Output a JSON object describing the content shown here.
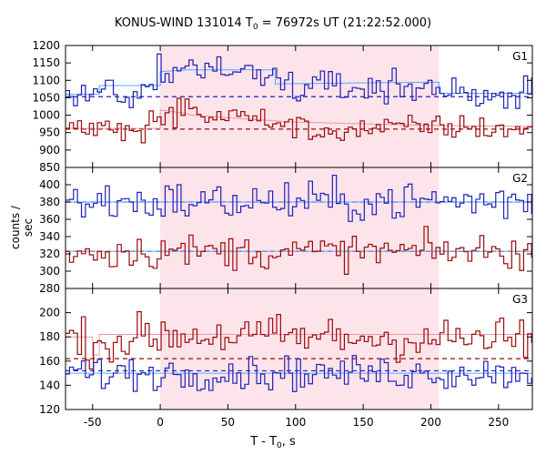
{
  "chart_data": {
    "type": "line",
    "title": {
      "main": "KONUS-WIND 131014 T",
      "sub": "0",
      "rest": " = 76972s UT (21:22:52.000)"
    },
    "xlabel": {
      "main": "T - T",
      "sub": "0",
      "rest": ", s"
    },
    "ylabel": "counts / sec",
    "xlim": [
      -70,
      275
    ],
    "xticks": [
      -50,
      0,
      50,
      100,
      150,
      200,
      250
    ],
    "highlight_interval": [
      0,
      206
    ],
    "bin_width_s": 2.944,
    "colors": {
      "blue": "#2020b8",
      "red": "#9b0a0a",
      "fit": "#55aaff",
      "fit_red": "#e899a6",
      "shade": "#fde4ea"
    },
    "panels": [
      {
        "label": "G1",
        "ylim": [
          850,
          1200
        ],
        "yticks": [
          850,
          900,
          950,
          1000,
          1050,
          1100,
          1150,
          1200
        ],
        "series": [
          {
            "color": "blue",
            "background": 1053,
            "x": [
              -70,
              -40,
              -10,
              0,
              20,
              40,
              60,
              80,
              90,
              100,
              120,
              150,
              180,
              206,
              240,
              275
            ],
            "y": [
              1060,
              1065,
              1075,
              1125,
              1135,
              1130,
              1125,
              1120,
              1095,
              1082,
              1080,
              1080,
              1082,
              1075,
              1060,
              1058
            ],
            "noise": 22,
            "fit": [
              [
                -70,
                1060
              ],
              [
                -45,
                1060
              ],
              [
                -45,
                1085
              ],
              [
                0,
                1085
              ],
              [
                0,
                1125
              ],
              [
                20,
                1130
              ],
              [
                85,
                1130
              ],
              [
                85,
                1090
              ],
              [
                206,
                1095
              ],
              [
                206,
                1063
              ],
              [
                275,
                1063
              ]
            ]
          },
          {
            "color": "red",
            "background": 960,
            "x": [
              -70,
              -10,
              0,
              20,
              40,
              60,
              80,
              100,
              110,
              130,
              160,
              206,
              240,
              275
            ],
            "y": [
              960,
              965,
              1000,
              1010,
              1000,
              995,
              985,
              970,
              950,
              955,
              962,
              968,
              962,
              960
            ],
            "noise": 18,
            "fit": [
              [
                -70,
                962
              ],
              [
                0,
                962
              ],
              [
                0,
                1015
              ],
              [
                10,
                1010
              ],
              [
                25,
                1000
              ],
              [
                60,
                990
              ],
              [
                100,
                980
              ],
              [
                206,
                970
              ],
              [
                275,
                968
              ]
            ]
          }
        ]
      },
      {
        "label": "G2",
        "ylim": [
          280,
          420
        ],
        "yticks": [
          280,
          300,
          320,
          340,
          360,
          380,
          400
        ],
        "series": [
          {
            "color": "blue",
            "background": 380,
            "x": [
              -70,
              0,
              100,
              200,
              275
            ],
            "y": [
              380,
              380,
              380,
              381,
              381
            ],
            "noise": 12,
            "fit": [
              [
                -70,
                380
              ],
              [
                275,
                380
              ]
            ]
          },
          {
            "color": "red",
            "background": 323,
            "x": [
              -70,
              0,
              100,
              200,
              275
            ],
            "y": [
              322,
              323,
              322,
              323,
              322
            ],
            "noise": 10,
            "fit": [
              [
                -70,
                323
              ],
              [
                275,
                323
              ]
            ]
          }
        ]
      },
      {
        "label": "G3",
        "ylim": [
          120,
          220
        ],
        "yticks": [
          120,
          140,
          160,
          180,
          200
        ],
        "series": [
          {
            "color": "red",
            "background": 162,
            "x": [
              -70,
              -40,
              0,
              100,
              206,
              275
            ],
            "y": [
              178,
              175,
              182,
              180,
              178,
              178
            ],
            "noise": 9,
            "fit": [
              [
                -70,
                180
              ],
              [
                -50,
                180
              ],
              [
                -50,
                165
              ],
              [
                -45,
                165
              ],
              [
                -45,
                182
              ],
              [
                275,
                182
              ]
            ]
          },
          {
            "color": "blue",
            "background": 152,
            "x": [
              -70,
              0,
              100,
              200,
              275
            ],
            "y": [
              150,
              150,
              150,
              150,
              150
            ],
            "noise": 7,
            "fit": [
              [
                -70,
                150
              ],
              [
                275,
                150
              ]
            ]
          }
        ]
      }
    ]
  }
}
